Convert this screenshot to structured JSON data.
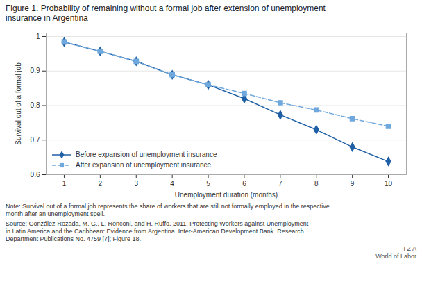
{
  "chart_data": {
    "type": "line",
    "title": "Figure 1. Probability of remaining without a formal job after extension of unemployment\ninsurance in Argentina",
    "xlabel": "Unemployment duration (months)",
    "ylabel": "Survival out of a formal job",
    "x": [
      1,
      2,
      3,
      4,
      5,
      6,
      7,
      8,
      9,
      10
    ],
    "series": [
      {
        "name": "Before expansion of unemployment insurance",
        "color": "#1f5fa6",
        "marker": "diamond",
        "line_style": "solid",
        "values": [
          0.984,
          0.957,
          0.928,
          0.889,
          0.86,
          0.82,
          0.773,
          0.73,
          0.68,
          0.638
        ]
      },
      {
        "name": "After expansion of unemployment insurance",
        "color": "#6fa8dc",
        "marker": "square",
        "line_style": "dashed",
        "values": [
          0.984,
          0.957,
          0.928,
          0.889,
          0.86,
          0.835,
          0.808,
          0.787,
          0.762,
          0.74
        ]
      }
    ],
    "xlim": [
      0.5,
      10.5
    ],
    "xticks": [
      1,
      2,
      3,
      4,
      5,
      6,
      7,
      8,
      9,
      10
    ],
    "ylim": [
      0.6,
      1.01
    ],
    "yticks": [
      0.6,
      0.7,
      0.8,
      0.9,
      1
    ],
    "grid": true,
    "legend": "lower left",
    "annotations": [
      "Note: Survival out of a formal job represents the share of workers that are still not formally employed in the respective\nmonth after an unemployment spell.",
      "Source: González-Rozada, M. G., L. Ronconi, and H. Ruffo. 2011. Protecting Workers against Unemployment\nin Latin America and the Caribbean: Evidence from Argentina. Inter-American Development Bank. Research\nDepartment Publications No. 4759 [7]; Figure 18.",
      "I Z A\nWorld of Labor"
    ]
  }
}
